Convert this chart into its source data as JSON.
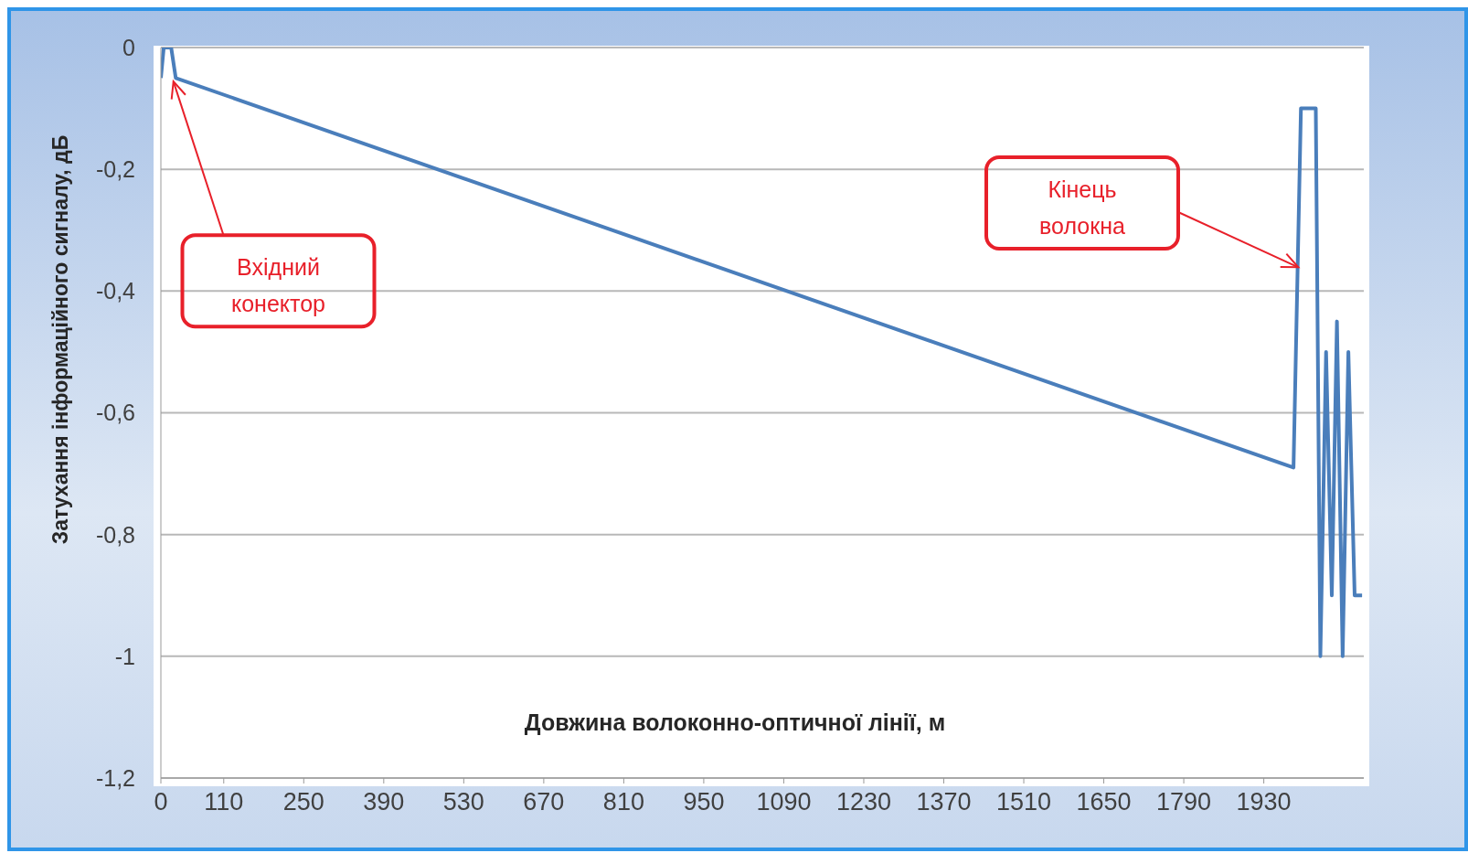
{
  "chart_data": {
    "type": "line",
    "xlabel": "Довжина волоконно-оптичної  лінії, м",
    "ylabel": "Затухання інформаційного сигналу, дБ",
    "x": [
      0,
      5,
      18,
      26,
      1982,
      1995,
      2021,
      2029,
      2039,
      2049,
      2058,
      2068,
      2078,
      2089,
      2102
    ],
    "series": [
      {
        "color": "#4a7ebb",
        "values": [
          -0.05,
          0,
          0,
          -0.05,
          -0.69,
          -0.1,
          -0.1,
          -1,
          -0.5,
          -0.9,
          -0.45,
          -1,
          -0.5,
          -0.9,
          -0.9
        ]
      }
    ],
    "xlim": [
      0,
      2105
    ],
    "xticks": [
      0,
      110,
      250,
      390,
      530,
      670,
      810,
      950,
      1090,
      1230,
      1370,
      1510,
      1650,
      1790,
      1930
    ],
    "ylim": [
      -1.2,
      0
    ],
    "yticks": [
      {
        "value": -1.2,
        "label": "-1,2"
      },
      {
        "value": -1,
        "label": "-1"
      },
      {
        "value": -0.8,
        "label": "-0,8"
      },
      {
        "value": -0.6,
        "label": "-0,6"
      },
      {
        "value": -0.4,
        "label": "-0,4"
      },
      {
        "value": -0.2,
        "label": "-0,2"
      },
      {
        "value": 0,
        "label": "0"
      }
    ],
    "grid": "y",
    "marker": "none",
    "line_style": "solid",
    "annotations": [
      {
        "text": "Вхідний конектор",
        "x": 20,
        "y": -0.05
      },
      "Кінець волокна"
    ]
  }
}
